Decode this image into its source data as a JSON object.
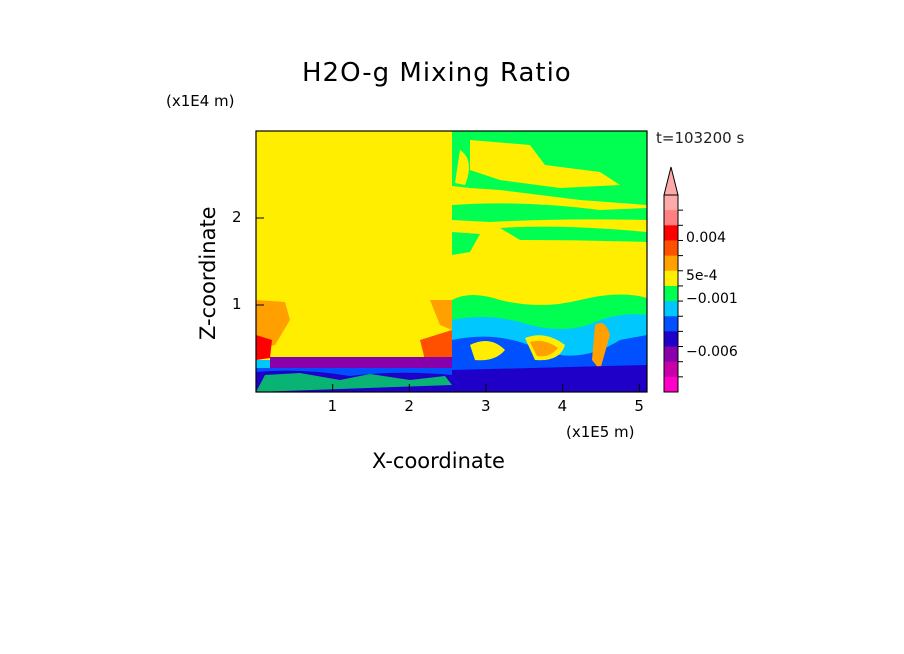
{
  "chart_data": {
    "type": "heatmap",
    "title": "H2O-g Mixing Ratio",
    "xlabel": "X-coordinate",
    "ylabel": "Z-coordinate",
    "x_scale_label": "(x1E5 m)",
    "z_scale_label": "(x1E4 m)",
    "time_label": "t=103200 s",
    "xlim": [
      0,
      5.1
    ],
    "ylim": [
      0,
      3
    ],
    "x_ticks": [
      "1",
      "2",
      "3",
      "4",
      "5"
    ],
    "x_tick_values": [
      1,
      2,
      3,
      4,
      5
    ],
    "y_ticks": [
      "1",
      "2"
    ],
    "y_tick_values": [
      1,
      2
    ],
    "colorbar": {
      "colors": [
        "#ff00c8",
        "#c800a8",
        "#8800aa",
        "#1f00c8",
        "#0050ff",
        "#00c8ff",
        "#00ff50",
        "#ffee00",
        "#ffa000",
        "#ff5000",
        "#ff0000",
        "#ff8080",
        "#ffaaaa"
      ],
      "labels": [
        "0.004",
        "5e-4",
        "−0.001",
        "−0.006"
      ],
      "label_level_index": [
        10,
        7.5,
        6,
        2.5
      ],
      "extend": "max"
    }
  }
}
